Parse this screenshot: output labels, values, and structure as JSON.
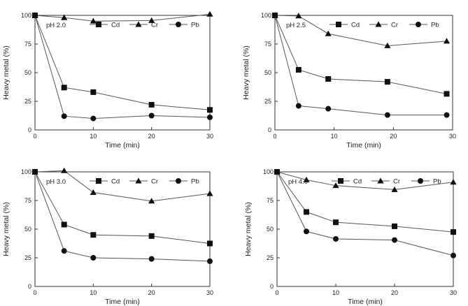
{
  "chart_data": [
    {
      "type": "line",
      "title": "",
      "annotation": "pH 2.0",
      "xlabel": "Time (min)",
      "ylabel": "Heavy metal (%)",
      "xlim": [
        0,
        30
      ],
      "ylim": [
        0,
        100
      ],
      "xticks": [
        0,
        10,
        20,
        30
      ],
      "yticks": [
        0,
        25,
        50,
        75,
        100
      ],
      "grid": false,
      "legend_position": "top",
      "series": [
        {
          "name": "Cd",
          "marker": "square",
          "x": [
            0,
            5,
            10,
            20,
            30
          ],
          "y": [
            100,
            37,
            33,
            22,
            17.5
          ]
        },
        {
          "name": "Cr",
          "marker": "triangle",
          "x": [
            0,
            5,
            10,
            20,
            30
          ],
          "y": [
            100,
            98,
            95,
            95.5,
            101
          ]
        },
        {
          "name": "Pb",
          "marker": "circle",
          "x": [
            0,
            5,
            10,
            20,
            30
          ],
          "y": [
            100,
            12,
            10,
            12.5,
            11
          ]
        }
      ]
    },
    {
      "type": "line",
      "title": "",
      "annotation": "pH 2.5",
      "xlabel": "Time (min)",
      "ylabel": "Heavy metal (%)",
      "xlim": [
        0,
        30
      ],
      "ylim": [
        0,
        100
      ],
      "xticks": [
        0,
        10,
        20,
        30
      ],
      "yticks": [
        0,
        25,
        50,
        75,
        100
      ],
      "grid": false,
      "legend_position": "top",
      "series": [
        {
          "name": "Cd",
          "marker": "square",
          "x": [
            0,
            4,
            9,
            19,
            29
          ],
          "y": [
            100,
            52.5,
            44.5,
            42,
            31.5
          ]
        },
        {
          "name": "Cr",
          "marker": "triangle",
          "x": [
            0,
            4,
            9,
            19,
            29
          ],
          "y": [
            100,
            99.5,
            84,
            73.5,
            77.5
          ]
        },
        {
          "name": "Pb",
          "marker": "circle",
          "x": [
            0,
            4,
            9,
            19,
            29
          ],
          "y": [
            100,
            21,
            18.5,
            13,
            13
          ]
        }
      ]
    },
    {
      "type": "line",
      "title": "",
      "annotation": "pH 3.0",
      "xlabel": "Time (min)",
      "ylabel": "Heavy metal (%)",
      "xlim": [
        0,
        30
      ],
      "ylim": [
        0,
        100
      ],
      "xticks": [
        0,
        10,
        20,
        30
      ],
      "yticks": [
        0,
        25,
        50,
        75,
        100
      ],
      "grid": false,
      "legend_position": "top",
      "series": [
        {
          "name": "Cd",
          "marker": "square",
          "x": [
            0,
            5,
            10,
            20,
            30
          ],
          "y": [
            100,
            54,
            45,
            44,
            37.5
          ]
        },
        {
          "name": "Cr",
          "marker": "triangle",
          "x": [
            0,
            5,
            10,
            20,
            30
          ],
          "y": [
            100,
            101,
            82,
            74.5,
            81
          ]
        },
        {
          "name": "Pb",
          "marker": "circle",
          "x": [
            0,
            5,
            10,
            20,
            30
          ],
          "y": [
            100,
            31,
            25,
            24,
            22
          ]
        }
      ]
    },
    {
      "type": "line",
      "title": "",
      "annotation": "pH 4.0",
      "xlabel": "Time (min)",
      "ylabel": "Heavy metal (%)",
      "xlim": [
        0,
        30
      ],
      "ylim": [
        0,
        100
      ],
      "xticks": [
        0,
        10,
        20,
        30
      ],
      "yticks": [
        0,
        25,
        50,
        75,
        100
      ],
      "grid": false,
      "legend_position": "top",
      "series": [
        {
          "name": "Cd",
          "marker": "square",
          "x": [
            0,
            5,
            10,
            20,
            30
          ],
          "y": [
            100,
            65,
            56,
            52.5,
            47.5
          ]
        },
        {
          "name": "Cr",
          "marker": "triangle",
          "x": [
            0,
            5,
            10,
            20,
            30
          ],
          "y": [
            100,
            93,
            88,
            84.5,
            91
          ]
        },
        {
          "name": "Pb",
          "marker": "circle",
          "x": [
            0,
            5,
            10,
            20,
            30
          ],
          "y": [
            100,
            48,
            41.5,
            40.5,
            27
          ]
        }
      ]
    }
  ],
  "colors": {
    "line": "#555555",
    "marker": "#111111",
    "axis": "#333333"
  }
}
